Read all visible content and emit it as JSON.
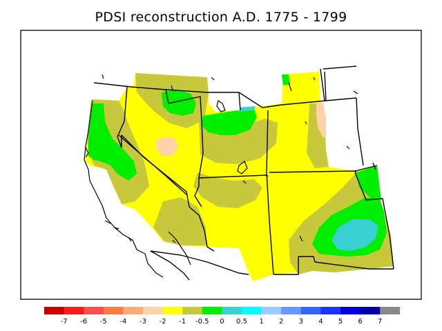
{
  "title": "PDSI reconstruction A.D. 1775 - 1799",
  "legend": {
    "colors": [
      "#cc0000",
      "#ff1a1a",
      "#ff4d4d",
      "#ff7a40",
      "#ffaa77",
      "#ffd2aa",
      "#ffff00",
      "#c8c83c",
      "#00ee00",
      "#38d0d0",
      "#00ffff",
      "#99ccff",
      "#6699ff",
      "#3366ff",
      "#1a33ff",
      "#0000dd",
      "#0000aa",
      "#888888"
    ],
    "labels": [
      "-7",
      "-6",
      "-5",
      "-4",
      "-3",
      "-2",
      "-1",
      "-0.5",
      "0",
      "0.5",
      "1",
      "2",
      "3",
      "4",
      "5",
      "6",
      "7"
    ]
  },
  "map_colors": {
    "background": "#ffffff",
    "yellow": "#ffff00",
    "olive": "#c8c83c",
    "green": "#00ee00",
    "cyan": "#38d0d0",
    "peach": "#ffd2aa",
    "border": "#000000"
  }
}
